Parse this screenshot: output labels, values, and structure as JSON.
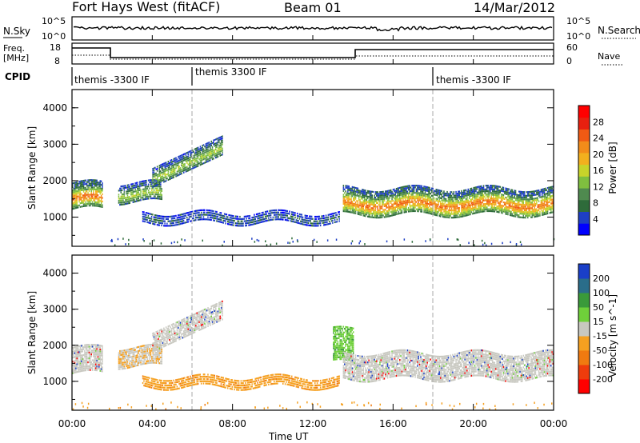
{
  "header": {
    "radar": "Fort Hays West (fitACF)",
    "beam": "Beam 01",
    "date": "14/Mar/2012"
  },
  "strips": {
    "nsky_label": "N.Sky",
    "nsearch_label": "N.Search",
    "nsky_ticks": [
      "10^5",
      "10^0"
    ],
    "nsearch_ticks": [
      "10^5",
      "10^0"
    ],
    "freq_label_1": "Freq.",
    "freq_label_2": "[MHz]",
    "freq_ticks": [
      "18",
      "8"
    ],
    "nave_label": "Nave",
    "nave_ticks": [
      "60",
      "0"
    ],
    "cpid_label": "CPID",
    "cpid_segments": [
      {
        "label": "themis -3300 IF",
        "start_hour": 0
      },
      {
        "label": "themis 3300 IF",
        "start_hour": 6
      },
      {
        "label": "themis -3300 IF",
        "start_hour": 18
      }
    ]
  },
  "time_axis": {
    "label": "Time UT",
    "ticks": [
      "00:00",
      "04:00",
      "08:00",
      "12:00",
      "16:00",
      "20:00",
      "00:00"
    ]
  },
  "colors": {
    "power": [
      "#0000ff",
      "#1e3fc4",
      "#2e6b3a",
      "#4f8a4f",
      "#7fbf3f",
      "#c8d42a",
      "#f2b01e",
      "#f28c1a",
      "#f05a14",
      "#e8200f",
      "#ff0000"
    ],
    "velocity": [
      "#1a3fc8",
      "#2a6d8a",
      "#3a9a3a",
      "#6fd03a",
      "#c8c8c0",
      "#f5a020",
      "#f07a10",
      "#ee3c0c",
      "#ff0000"
    ]
  },
  "chart_data": [
    {
      "type": "heatmap",
      "panel": "power",
      "ylabel": "Slant Range [km]",
      "xlabel": "Time UT",
      "x_range_hours": [
        0,
        24
      ],
      "ylim": [
        200,
        4500
      ],
      "y_ticks": [
        1000,
        2000,
        3000,
        4000
      ],
      "colorbar_label": "Power [dB]",
      "colorbar_ticks": [
        "4",
        "8",
        "12",
        "16",
        "20",
        "24",
        "28"
      ],
      "echo_bands": [
        {
          "from_hour": 0.0,
          "to_hour": 1.5,
          "center_km": 1600,
          "width_km": 700,
          "level": "high"
        },
        {
          "from_hour": 2.3,
          "to_hour": 4.5,
          "center_km": 1700,
          "width_km": 500,
          "level": "medium"
        },
        {
          "from_hour": 4.0,
          "to_hour": 7.5,
          "center_km": 2500,
          "width_km": 500,
          "level": "medium"
        },
        {
          "from_hour": 3.5,
          "to_hour": 13.3,
          "center_km": 1000,
          "width_km": 250,
          "level": "low"
        },
        {
          "from_hour": 13.5,
          "to_hour": 24.0,
          "center_km": 1450,
          "width_km": 700,
          "level": "high"
        }
      ]
    },
    {
      "type": "heatmap",
      "panel": "velocity",
      "ylabel": "Slant Range [km]",
      "xlabel": "Time UT",
      "x_range_hours": [
        0,
        24
      ],
      "ylim": [
        200,
        4500
      ],
      "y_ticks": [
        1000,
        2000,
        3000,
        4000
      ],
      "colorbar_label": "Velocity [m s^-1]",
      "colorbar_ticks": [
        "200",
        "100",
        "50",
        "15",
        "-15",
        "-50",
        "-100",
        "-200"
      ],
      "echo_bands": [
        {
          "from_hour": 0.0,
          "to_hour": 1.5,
          "center_km": 1600,
          "width_km": 700,
          "velocity_class": "near-zero"
        },
        {
          "from_hour": 2.3,
          "to_hour": 4.5,
          "center_km": 1700,
          "width_km": 500,
          "velocity_class": "mixed"
        },
        {
          "from_hour": 4.0,
          "to_hour": 7.5,
          "center_km": 2500,
          "width_km": 500,
          "velocity_class": "near-zero"
        },
        {
          "from_hour": 3.5,
          "to_hour": 13.3,
          "center_km": 1000,
          "width_km": 250,
          "velocity_class": "negative"
        },
        {
          "from_hour": 13.0,
          "to_hour": 14.0,
          "center_km": 2000,
          "width_km": 900,
          "velocity_class": "positive"
        },
        {
          "from_hour": 13.5,
          "to_hour": 24.0,
          "center_km": 1450,
          "width_km": 700,
          "velocity_class": "near-zero"
        }
      ]
    }
  ]
}
